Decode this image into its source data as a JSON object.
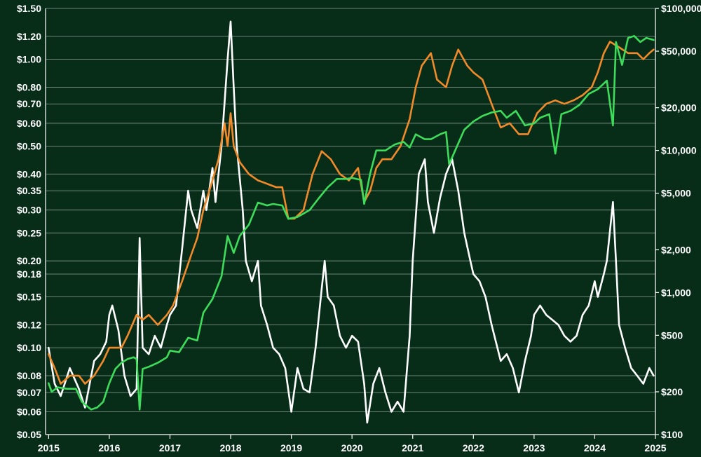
{
  "chart_data": {
    "type": "line",
    "title": "",
    "xlabel": "",
    "ylabel": "",
    "grid": true,
    "x_ticks": [
      "2015",
      "2016",
      "2017",
      "2018",
      "2019",
      "2020",
      "2021",
      "2022",
      "2023",
      "2024",
      "2025"
    ],
    "xlim": [
      2014.95,
      2025.0
    ],
    "y_left": {
      "scale": "log",
      "lim": [
        0.05,
        1.5
      ],
      "ticks": [
        1.5,
        1.2,
        1.0,
        0.8,
        0.7,
        0.6,
        0.5,
        0.4,
        0.35,
        0.3,
        0.25,
        0.2,
        0.18,
        0.15,
        0.12,
        0.1,
        0.08,
        0.07,
        0.06,
        0.05
      ],
      "tick_labels": [
        "$1.50",
        "$1.20",
        "$1.00",
        "$0.80",
        "$0.70",
        "$0.60",
        "$0.50",
        "$0.40",
        "$0.35",
        "$0.30",
        "$0.25",
        "$0.20",
        "$0.18",
        "$0.15",
        "$0.12",
        "$0.10",
        "$0.08",
        "$0.07",
        "$0.06",
        "$0.05"
      ]
    },
    "y_right": {
      "scale": "log",
      "lim": [
        100,
        100000
      ],
      "ticks": [
        100000,
        50000,
        20000,
        10000,
        5000,
        2000,
        1000,
        500,
        200,
        100
      ],
      "tick_labels": [
        "$100,000",
        "$50,000",
        "$20,000",
        "$10,000",
        "$5,000",
        "$2,000",
        "$1,000",
        "$500",
        "$200",
        "$100"
      ]
    },
    "series": [
      {
        "color": "#ffffff",
        "axis": "left",
        "points": [
          [
            2015.0,
            0.1
          ],
          [
            2015.1,
            0.075
          ],
          [
            2015.2,
            0.068
          ],
          [
            2015.35,
            0.085
          ],
          [
            2015.5,
            0.072
          ],
          [
            2015.6,
            0.062
          ],
          [
            2015.75,
            0.09
          ],
          [
            2015.85,
            0.095
          ],
          [
            2015.95,
            0.105
          ],
          [
            2016.0,
            0.13
          ],
          [
            2016.05,
            0.14
          ],
          [
            2016.15,
            0.115
          ],
          [
            2016.25,
            0.08
          ],
          [
            2016.35,
            0.068
          ],
          [
            2016.45,
            0.072
          ],
          [
            2016.5,
            0.24
          ],
          [
            2016.55,
            0.1
          ],
          [
            2016.65,
            0.095
          ],
          [
            2016.75,
            0.11
          ],
          [
            2016.85,
            0.1
          ],
          [
            2016.95,
            0.12
          ],
          [
            2017.0,
            0.13
          ],
          [
            2017.1,
            0.14
          ],
          [
            2017.2,
            0.22
          ],
          [
            2017.3,
            0.35
          ],
          [
            2017.35,
            0.3
          ],
          [
            2017.45,
            0.26
          ],
          [
            2017.55,
            0.35
          ],
          [
            2017.6,
            0.3
          ],
          [
            2017.7,
            0.42
          ],
          [
            2017.75,
            0.32
          ],
          [
            2017.85,
            0.5
          ],
          [
            2017.95,
            1.0
          ],
          [
            2018.0,
            1.35
          ],
          [
            2018.05,
            0.8
          ],
          [
            2018.1,
            0.5
          ],
          [
            2018.2,
            0.3
          ],
          [
            2018.25,
            0.2
          ],
          [
            2018.35,
            0.17
          ],
          [
            2018.45,
            0.2
          ],
          [
            2018.5,
            0.14
          ],
          [
            2018.6,
            0.12
          ],
          [
            2018.7,
            0.1
          ],
          [
            2018.8,
            0.095
          ],
          [
            2018.9,
            0.085
          ],
          [
            2019.0,
            0.06
          ],
          [
            2019.1,
            0.085
          ],
          [
            2019.2,
            0.072
          ],
          [
            2019.3,
            0.07
          ],
          [
            2019.4,
            0.1
          ],
          [
            2019.5,
            0.16
          ],
          [
            2019.55,
            0.2
          ],
          [
            2019.6,
            0.15
          ],
          [
            2019.7,
            0.14
          ],
          [
            2019.8,
            0.11
          ],
          [
            2019.9,
            0.1
          ],
          [
            2020.0,
            0.11
          ],
          [
            2020.1,
            0.105
          ],
          [
            2020.2,
            0.075
          ],
          [
            2020.25,
            0.055
          ],
          [
            2020.35,
            0.075
          ],
          [
            2020.45,
            0.085
          ],
          [
            2020.55,
            0.07
          ],
          [
            2020.65,
            0.06
          ],
          [
            2020.75,
            0.065
          ],
          [
            2020.85,
            0.06
          ],
          [
            2020.95,
            0.11
          ],
          [
            2021.0,
            0.2
          ],
          [
            2021.1,
            0.4
          ],
          [
            2021.2,
            0.45
          ],
          [
            2021.25,
            0.32
          ],
          [
            2021.35,
            0.25
          ],
          [
            2021.45,
            0.33
          ],
          [
            2021.55,
            0.4
          ],
          [
            2021.65,
            0.45
          ],
          [
            2021.75,
            0.35
          ],
          [
            2021.85,
            0.25
          ],
          [
            2021.95,
            0.2
          ],
          [
            2022.0,
            0.18
          ],
          [
            2022.1,
            0.17
          ],
          [
            2022.2,
            0.15
          ],
          [
            2022.3,
            0.12
          ],
          [
            2022.45,
            0.09
          ],
          [
            2022.55,
            0.095
          ],
          [
            2022.65,
            0.085
          ],
          [
            2022.75,
            0.07
          ],
          [
            2022.85,
            0.09
          ],
          [
            2022.95,
            0.11
          ],
          [
            2023.0,
            0.13
          ],
          [
            2023.1,
            0.14
          ],
          [
            2023.2,
            0.13
          ],
          [
            2023.3,
            0.125
          ],
          [
            2023.4,
            0.12
          ],
          [
            2023.5,
            0.11
          ],
          [
            2023.6,
            0.105
          ],
          [
            2023.7,
            0.11
          ],
          [
            2023.8,
            0.13
          ],
          [
            2023.9,
            0.14
          ],
          [
            2024.0,
            0.17
          ],
          [
            2024.05,
            0.15
          ],
          [
            2024.15,
            0.18
          ],
          [
            2024.2,
            0.2
          ],
          [
            2024.3,
            0.32
          ],
          [
            2024.35,
            0.2
          ],
          [
            2024.4,
            0.12
          ],
          [
            2024.5,
            0.1
          ],
          [
            2024.6,
            0.085
          ],
          [
            2024.7,
            0.08
          ],
          [
            2024.8,
            0.075
          ],
          [
            2024.9,
            0.085
          ],
          [
            2024.97,
            0.08
          ]
        ]
      },
      {
        "color": "#f28a2a",
        "axis": "left",
        "points": [
          [
            2015.0,
            0.095
          ],
          [
            2015.1,
            0.085
          ],
          [
            2015.2,
            0.075
          ],
          [
            2015.35,
            0.08
          ],
          [
            2015.5,
            0.08
          ],
          [
            2015.6,
            0.075
          ],
          [
            2015.75,
            0.08
          ],
          [
            2015.9,
            0.09
          ],
          [
            2016.0,
            0.1
          ],
          [
            2016.1,
            0.1
          ],
          [
            2016.2,
            0.1
          ],
          [
            2016.3,
            0.11
          ],
          [
            2016.45,
            0.13
          ],
          [
            2016.55,
            0.125
          ],
          [
            2016.65,
            0.13
          ],
          [
            2016.8,
            0.12
          ],
          [
            2016.95,
            0.13
          ],
          [
            2017.05,
            0.14
          ],
          [
            2017.2,
            0.17
          ],
          [
            2017.35,
            0.21
          ],
          [
            2017.45,
            0.24
          ],
          [
            2017.55,
            0.3
          ],
          [
            2017.7,
            0.38
          ],
          [
            2017.8,
            0.45
          ],
          [
            2017.9,
            0.6
          ],
          [
            2017.95,
            0.5
          ],
          [
            2018.0,
            0.65
          ],
          [
            2018.05,
            0.5
          ],
          [
            2018.15,
            0.44
          ],
          [
            2018.3,
            0.4
          ],
          [
            2018.45,
            0.38
          ],
          [
            2018.6,
            0.37
          ],
          [
            2018.75,
            0.36
          ],
          [
            2018.85,
            0.36
          ],
          [
            2018.95,
            0.28
          ],
          [
            2019.05,
            0.28
          ],
          [
            2019.2,
            0.3
          ],
          [
            2019.35,
            0.4
          ],
          [
            2019.5,
            0.48
          ],
          [
            2019.65,
            0.45
          ],
          [
            2019.8,
            0.4
          ],
          [
            2019.95,
            0.38
          ],
          [
            2020.1,
            0.42
          ],
          [
            2020.2,
            0.32
          ],
          [
            2020.3,
            0.35
          ],
          [
            2020.4,
            0.42
          ],
          [
            2020.5,
            0.45
          ],
          [
            2020.65,
            0.45
          ],
          [
            2020.8,
            0.5
          ],
          [
            2020.95,
            0.62
          ],
          [
            2021.05,
            0.8
          ],
          [
            2021.15,
            0.95
          ],
          [
            2021.3,
            1.05
          ],
          [
            2021.4,
            0.85
          ],
          [
            2021.55,
            0.8
          ],
          [
            2021.65,
            0.95
          ],
          [
            2021.75,
            1.08
          ],
          [
            2021.9,
            0.95
          ],
          [
            2022.0,
            0.9
          ],
          [
            2022.15,
            0.85
          ],
          [
            2022.3,
            0.7
          ],
          [
            2022.45,
            0.58
          ],
          [
            2022.6,
            0.6
          ],
          [
            2022.75,
            0.55
          ],
          [
            2022.9,
            0.55
          ],
          [
            2023.05,
            0.65
          ],
          [
            2023.2,
            0.7
          ],
          [
            2023.35,
            0.72
          ],
          [
            2023.5,
            0.7
          ],
          [
            2023.65,
            0.72
          ],
          [
            2023.8,
            0.75
          ],
          [
            2023.95,
            0.8
          ],
          [
            2024.05,
            0.9
          ],
          [
            2024.15,
            1.05
          ],
          [
            2024.25,
            1.15
          ],
          [
            2024.4,
            1.1
          ],
          [
            2024.55,
            1.05
          ],
          [
            2024.7,
            1.05
          ],
          [
            2024.8,
            1.0
          ],
          [
            2024.9,
            1.05
          ],
          [
            2024.97,
            1.08
          ]
        ]
      },
      {
        "color": "#3ddc5a",
        "axis": "right",
        "points": [
          [
            2015.0,
            230
          ],
          [
            2015.05,
            200
          ],
          [
            2015.15,
            215
          ],
          [
            2015.3,
            210
          ],
          [
            2015.45,
            210
          ],
          [
            2015.55,
            170
          ],
          [
            2015.7,
            150
          ],
          [
            2015.8,
            155
          ],
          [
            2015.9,
            170
          ],
          [
            2016.0,
            230
          ],
          [
            2016.1,
            290
          ],
          [
            2016.2,
            320
          ],
          [
            2016.3,
            340
          ],
          [
            2016.4,
            350
          ],
          [
            2016.45,
            340
          ],
          [
            2016.5,
            150
          ],
          [
            2016.55,
            290
          ],
          [
            2016.65,
            300
          ],
          [
            2016.8,
            320
          ],
          [
            2016.95,
            350
          ],
          [
            2017.0,
            390
          ],
          [
            2017.15,
            380
          ],
          [
            2017.3,
            480
          ],
          [
            2017.45,
            460
          ],
          [
            2017.55,
            720
          ],
          [
            2017.7,
            900
          ],
          [
            2017.85,
            1300
          ],
          [
            2017.95,
            2500
          ],
          [
            2018.05,
            1900
          ],
          [
            2018.15,
            2500
          ],
          [
            2018.3,
            3000
          ],
          [
            2018.45,
            4300
          ],
          [
            2018.6,
            4100
          ],
          [
            2018.7,
            4200
          ],
          [
            2018.85,
            4100
          ],
          [
            2018.95,
            3300
          ],
          [
            2019.1,
            3400
          ],
          [
            2019.3,
            3800
          ],
          [
            2019.45,
            4600
          ],
          [
            2019.6,
            5500
          ],
          [
            2019.75,
            6300
          ],
          [
            2019.9,
            6300
          ],
          [
            2020.0,
            6400
          ],
          [
            2020.15,
            6200
          ],
          [
            2020.2,
            4200
          ],
          [
            2020.3,
            6900
          ],
          [
            2020.4,
            10000
          ],
          [
            2020.55,
            10000
          ],
          [
            2020.7,
            11000
          ],
          [
            2020.85,
            11500
          ],
          [
            2020.95,
            10500
          ],
          [
            2021.05,
            13000
          ],
          [
            2021.2,
            12000
          ],
          [
            2021.3,
            12000
          ],
          [
            2021.45,
            13000
          ],
          [
            2021.55,
            13500
          ],
          [
            2021.6,
            8000
          ],
          [
            2021.7,
            10000
          ],
          [
            2021.85,
            14000
          ],
          [
            2022.0,
            16000
          ],
          [
            2022.15,
            17500
          ],
          [
            2022.3,
            18500
          ],
          [
            2022.45,
            19000
          ],
          [
            2022.55,
            17000
          ],
          [
            2022.7,
            19000
          ],
          [
            2022.85,
            15000
          ],
          [
            2023.0,
            15500
          ],
          [
            2023.1,
            17000
          ],
          [
            2023.25,
            18000
          ],
          [
            2023.35,
            9500
          ],
          [
            2023.45,
            18000
          ],
          [
            2023.6,
            19000
          ],
          [
            2023.75,
            21000
          ],
          [
            2023.9,
            25000
          ],
          [
            2024.05,
            27000
          ],
          [
            2024.2,
            31000
          ],
          [
            2024.3,
            15000
          ],
          [
            2024.35,
            58000
          ],
          [
            2024.45,
            40000
          ],
          [
            2024.55,
            62000
          ],
          [
            2024.65,
            64000
          ],
          [
            2024.75,
            58000
          ],
          [
            2024.85,
            62000
          ],
          [
            2024.97,
            60000
          ]
        ]
      }
    ]
  }
}
